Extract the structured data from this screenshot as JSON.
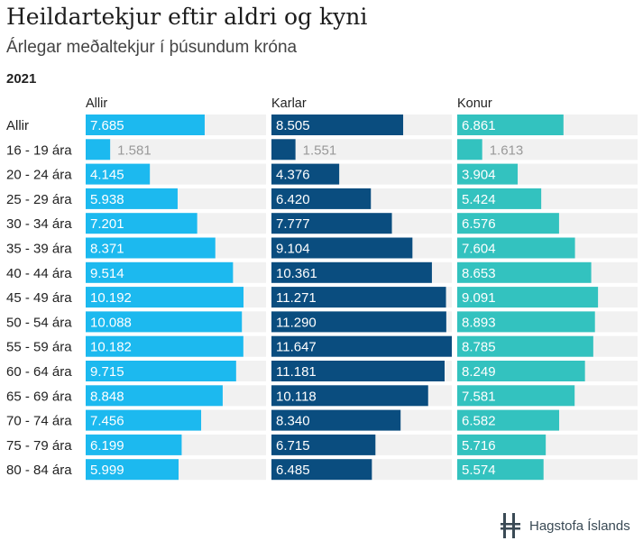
{
  "title": "Heildartekjur eftir aldri og kyni",
  "subtitle": "Árlegar meðaltekjur í þúsundum króna",
  "year": "2021",
  "footer": {
    "org": "Hagstofa Íslands"
  },
  "colors": {
    "allir": "#1cb9ef",
    "karlar": "#0a4d7f",
    "konur": "#33c2bf",
    "track": "#f1f1f1",
    "outside_label": "#999999"
  },
  "chart_data": {
    "type": "bar",
    "categories": [
      "Allir",
      "16 - 19 ára",
      "20 - 24 ára",
      "25 - 29 ára",
      "30 - 34 ára",
      "35 - 39 ára",
      "40 - 44 ára",
      "45 - 49 ára",
      "50 - 54 ára",
      "55 - 59 ára",
      "60 - 64 ára",
      "65 - 69 ára",
      "70 - 74 ára",
      "75 - 79 ára",
      "80 - 84 ára"
    ],
    "series": [
      {
        "name": "Allir",
        "values": [
          7685,
          1581,
          4145,
          5938,
          7201,
          8371,
          9514,
          10192,
          10088,
          10182,
          9715,
          8848,
          7456,
          6199,
          5999
        ],
        "labels": [
          "7.685",
          "1.581",
          "4.145",
          "5.938",
          "7.201",
          "8.371",
          "9.514",
          "10.192",
          "10.088",
          "10.182",
          "9.715",
          "8.848",
          "7.456",
          "6.199",
          "5.999"
        ]
      },
      {
        "name": "Karlar",
        "values": [
          8505,
          1551,
          4376,
          6420,
          7777,
          9104,
          10361,
          11271,
          11290,
          11647,
          11181,
          10118,
          8340,
          6715,
          6485
        ],
        "labels": [
          "8.505",
          "1.551",
          "4.376",
          "6.420",
          "7.777",
          "9.104",
          "10.361",
          "11.271",
          "11.290",
          "11.647",
          "11.181",
          "10.118",
          "8.340",
          "6.715",
          "6.485"
        ]
      },
      {
        "name": "Konur",
        "values": [
          6861,
          1613,
          3904,
          5424,
          6576,
          7604,
          8653,
          9091,
          8893,
          8785,
          8249,
          7581,
          6582,
          5716,
          5574
        ],
        "labels": [
          "6.861",
          "1.613",
          "3.904",
          "5.424",
          "6.576",
          "7.604",
          "8.653",
          "9.091",
          "8.893",
          "8.785",
          "8.249",
          "7.581",
          "6.582",
          "5.716",
          "5.574"
        ]
      }
    ],
    "xlim": [
      0,
      11647
    ],
    "grid": false,
    "legend": "none"
  }
}
